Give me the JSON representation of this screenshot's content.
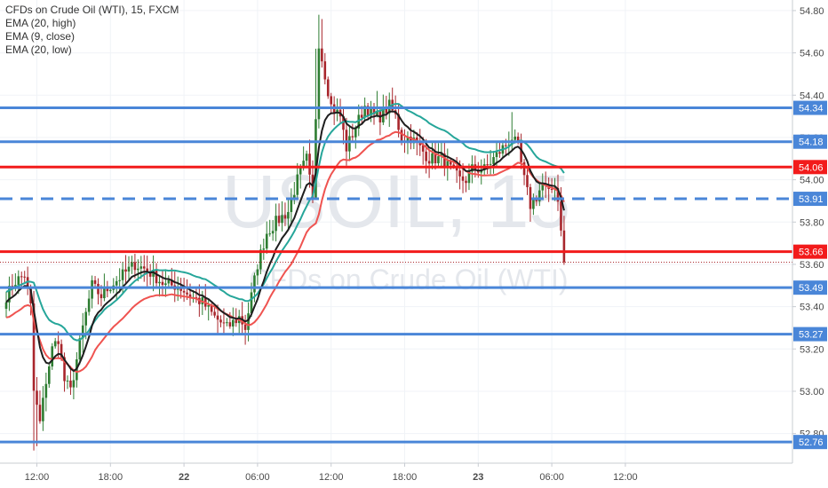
{
  "legend": {
    "title": "CFDs on Crude Oil (WTI), 15, FXCM",
    "indicators": [
      "EMA (20, high)",
      "EMA (9, close)",
      "EMA (20, low)"
    ]
  },
  "watermark": {
    "symbol": "USOIL, 15",
    "name": "CFDs on Crude Oil (WTI)"
  },
  "colors": {
    "blue_level": "#4a86d8",
    "red_level": "#f21b1b",
    "ema_high": "#26a69a",
    "ema_close": "#1e1e1e",
    "ema_low": "#ef5350",
    "candle_up": "#2e7d32",
    "candle_down": "#a8262c",
    "current_price_line": "#a8262c"
  },
  "chart_data": {
    "type": "candlestick",
    "instrument": "CFDs on Crude Oil (WTI)",
    "timeframe": "15",
    "source": "FXCM",
    "ylim": [
      52.66,
      54.85
    ],
    "y_ticks": [
      52.8,
      53.0,
      53.2,
      53.4,
      53.6,
      53.8,
      54.0,
      54.2,
      54.4,
      54.6,
      54.8
    ],
    "y_tick_labels": [
      "52.80",
      "53.00",
      "53.20",
      "53.40",
      "53.60",
      "53.80",
      "54.00",
      "54.20",
      "54.40",
      "54.60",
      "54.80"
    ],
    "x_ticks": [
      "12:00",
      "18:00",
      "22",
      "06:00",
      "12:00",
      "18:00",
      "23",
      "06:00",
      "12:00"
    ],
    "x_tick_bars": [
      10,
      34,
      58,
      82,
      106,
      130,
      154,
      178,
      202
    ],
    "horizontal_levels": [
      {
        "value": 54.34,
        "label": "54.34",
        "color": "blue",
        "style": "solid"
      },
      {
        "value": 54.18,
        "label": "54.18",
        "color": "blue",
        "style": "solid"
      },
      {
        "value": 54.06,
        "label": "54.06",
        "color": "red",
        "style": "solid"
      },
      {
        "value": 53.91,
        "label": "53.91",
        "color": "blue",
        "style": "dashed"
      },
      {
        "value": 53.66,
        "label": "53.66",
        "color": "red",
        "style": "solid"
      },
      {
        "value": 53.49,
        "label": "53.49",
        "color": "blue",
        "style": "solid"
      },
      {
        "value": 53.27,
        "label": "53.27",
        "color": "blue",
        "style": "solid"
      },
      {
        "value": 52.76,
        "label": "52.76",
        "color": "blue",
        "style": "solid"
      }
    ],
    "current_price": 53.61,
    "close_anchors": [
      [
        0,
        53.45
      ],
      [
        3,
        53.52
      ],
      [
        6,
        53.55
      ],
      [
        8,
        53.4
      ],
      [
        9,
        53.0
      ],
      [
        11,
        52.85
      ],
      [
        13,
        53.05
      ],
      [
        15,
        53.2
      ],
      [
        17,
        53.25
      ],
      [
        19,
        53.05
      ],
      [
        21,
        53.0
      ],
      [
        23,
        53.15
      ],
      [
        25,
        53.3
      ],
      [
        28,
        53.5
      ],
      [
        31,
        53.45
      ],
      [
        34,
        53.5
      ],
      [
        38,
        53.55
      ],
      [
        42,
        53.6
      ],
      [
        45,
        53.58
      ],
      [
        48,
        53.55
      ],
      [
        52,
        53.5
      ],
      [
        56,
        53.5
      ],
      [
        60,
        53.45
      ],
      [
        64,
        53.42
      ],
      [
        68,
        53.35
      ],
      [
        72,
        53.3
      ],
      [
        76,
        53.35
      ],
      [
        78,
        53.3
      ],
      [
        80,
        53.45
      ],
      [
        82,
        53.6
      ],
      [
        85,
        53.75
      ],
      [
        88,
        53.8
      ],
      [
        92,
        53.85
      ],
      [
        95,
        54.0
      ],
      [
        98,
        54.1
      ],
      [
        100,
        53.9
      ],
      [
        101,
        54.3
      ],
      [
        102,
        54.65
      ],
      [
        104,
        54.5
      ],
      [
        106,
        54.35
      ],
      [
        109,
        54.3
      ],
      [
        111,
        54.15
      ],
      [
        114,
        54.25
      ],
      [
        117,
        54.35
      ],
      [
        120,
        54.3
      ],
      [
        122,
        54.3
      ],
      [
        125,
        54.35
      ],
      [
        127,
        54.3
      ],
      [
        129,
        54.2
      ],
      [
        132,
        54.2
      ],
      [
        135,
        54.15
      ],
      [
        138,
        54.1
      ],
      [
        142,
        54.1
      ],
      [
        145,
        54.05
      ],
      [
        148,
        54.0
      ],
      [
        150,
        54.0
      ],
      [
        152,
        54.05
      ],
      [
        156,
        54.05
      ],
      [
        159,
        54.1
      ],
      [
        162,
        54.15
      ],
      [
        165,
        54.2
      ],
      [
        167,
        54.15
      ],
      [
        169,
        54.0
      ],
      [
        171,
        53.88
      ],
      [
        173,
        53.92
      ],
      [
        175,
        53.98
      ],
      [
        177,
        53.93
      ],
      [
        179,
        53.98
      ],
      [
        180,
        53.9
      ],
      [
        181,
        53.78
      ],
      [
        182,
        53.61
      ]
    ]
  }
}
